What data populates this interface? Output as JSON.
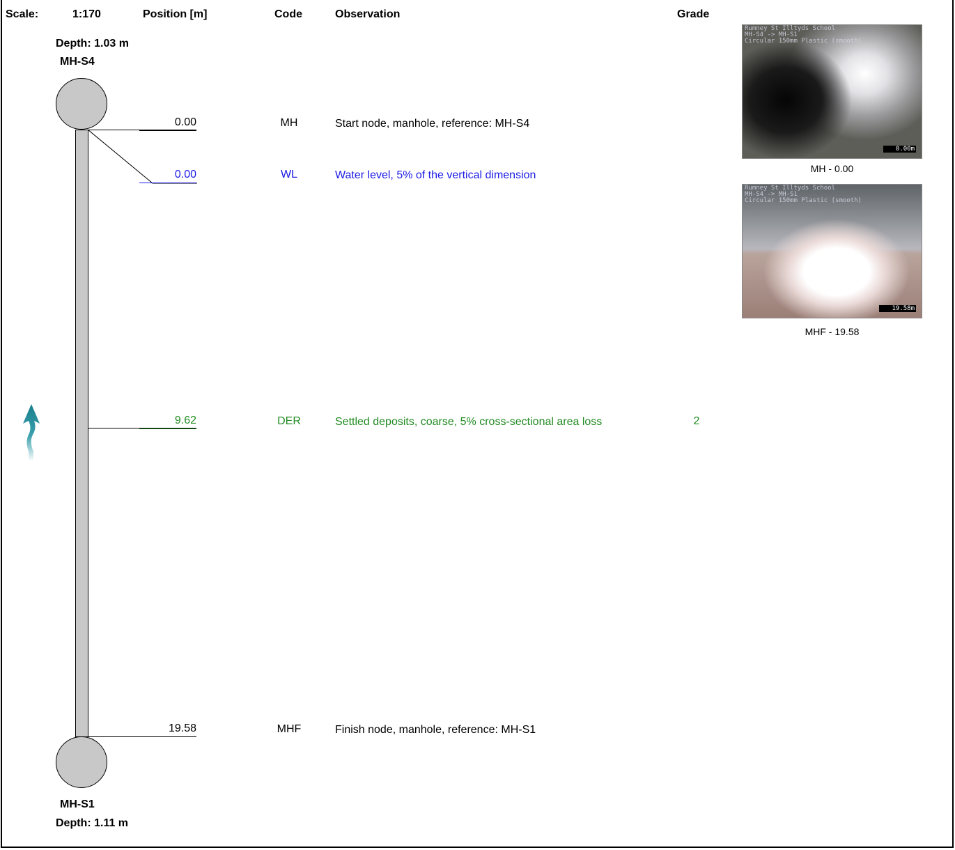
{
  "header": {
    "scale_label": "Scale:",
    "scale_value": "1:170",
    "position_label": "Position [m]",
    "code_label": "Code",
    "observation_label": "Observation",
    "grade_label": "Grade"
  },
  "start_node": {
    "depth": "Depth: 1.03 m",
    "name": "MH-S4"
  },
  "finish_node": {
    "name": "MH-S1",
    "depth": "Depth: 1.11 m"
  },
  "observations": [
    {
      "position": "0.00",
      "code": "MH",
      "text": "Start node, manhole, reference: MH-S4",
      "grade": "",
      "color": "#000000"
    },
    {
      "position": "0.00",
      "code": "WL",
      "text": "Water level, 5% of the vertical dimension",
      "grade": "",
      "color": "#1a1ae6"
    },
    {
      "position": "9.62",
      "code": "DER",
      "text": "Settled deposits, coarse, 5% cross-sectional area loss",
      "grade": "2",
      "color": "#228b22"
    },
    {
      "position": "19.58",
      "code": "MHF",
      "text": "Finish node, manhole, reference: MH-S1",
      "grade": "",
      "color": "#000000"
    }
  ],
  "photos": [
    {
      "overlay": "Rumney St Illtyds School\nMH-S4 -> MH-S1\nCircular 150mm Plastic (smooth)",
      "stamp": "0.00m",
      "caption": "MH - 0.00"
    },
    {
      "overlay": "Rumney St Illtyds School\nMH-S4 -> MH-S1\nCircular 150mm Plastic (smooth)",
      "stamp": "19.58m",
      "caption": "MHF - 19.58"
    }
  ],
  "flow_direction": "up",
  "flow_arrow_color": "#1a7f8c"
}
